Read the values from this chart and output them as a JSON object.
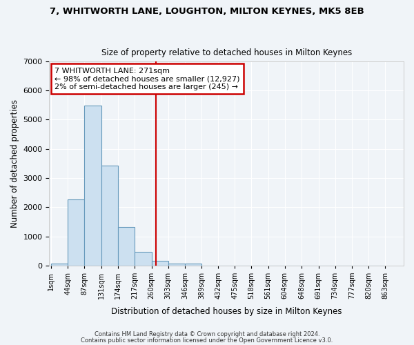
{
  "title1": "7, WHITWORTH LANE, LOUGHTON, MILTON KEYNES, MK5 8EB",
  "title2": "Size of property relative to detached houses in Milton Keynes",
  "xlabel": "Distribution of detached houses by size in Milton Keynes",
  "ylabel": "Number of detached properties",
  "bin_edges": [
    1,
    44,
    87,
    131,
    174,
    217,
    260,
    303,
    346,
    389,
    432,
    475,
    518,
    561,
    604,
    648,
    691,
    734,
    777,
    820,
    863
  ],
  "bar_heights": [
    75,
    2270,
    5480,
    3430,
    1310,
    460,
    160,
    75,
    60,
    0,
    0,
    0,
    0,
    0,
    0,
    0,
    0,
    0,
    0,
    0
  ],
  "bar_color": "#cce0f0",
  "bar_edge_color": "#6699bb",
  "bar_linewidth": 0.8,
  "tick_labels": [
    "1sqm",
    "44sqm",
    "87sqm",
    "131sqm",
    "174sqm",
    "217sqm",
    "260sqm",
    "303sqm",
    "346sqm",
    "389sqm",
    "432sqm",
    "475sqm",
    "518sqm",
    "561sqm",
    "604sqm",
    "648sqm",
    "691sqm",
    "734sqm",
    "777sqm",
    "820sqm",
    "863sqm"
  ],
  "vline_x": 271,
  "vline_color": "#cc0000",
  "ylim": [
    0,
    7000
  ],
  "yticks": [
    0,
    1000,
    2000,
    3000,
    4000,
    5000,
    6000,
    7000
  ],
  "bg_color": "#f0f4f8",
  "plot_bg_color": "#f0f4f8",
  "grid_color": "#ffffff",
  "annotation_line1": "7 WHITWORTH LANE: 271sqm",
  "annotation_line2": "← 98% of detached houses are smaller (12,927)",
  "annotation_line3": "2% of semi-detached houses are larger (245) →",
  "annotation_box_color": "#ffffff",
  "annotation_border_color": "#cc0000",
  "footer1": "Contains HM Land Registry data © Crown copyright and database right 2024.",
  "footer2": "Contains public sector information licensed under the Open Government Licence v3.0."
}
